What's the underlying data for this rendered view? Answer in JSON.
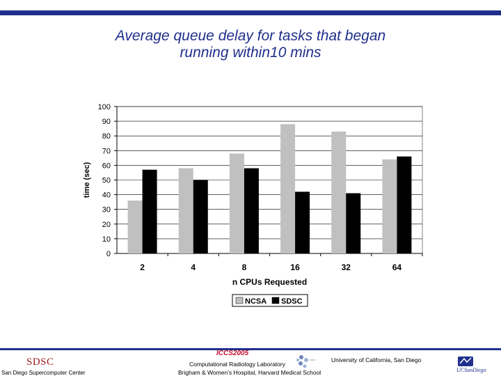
{
  "slide": {
    "title_line1": "Average queue delay for tasks that began",
    "title_line2": "running within10 mins"
  },
  "chart_data": {
    "type": "bar",
    "title": "",
    "xlabel": "n CPUs Requested",
    "ylabel": "time (sec)",
    "ylim": [
      0,
      100
    ],
    "yticks": [
      0,
      10,
      20,
      30,
      40,
      50,
      60,
      70,
      80,
      90,
      100
    ],
    "categories": [
      "2",
      "4",
      "8",
      "16",
      "32",
      "64"
    ],
    "series": [
      {
        "name": "NCSA",
        "values": [
          36,
          58,
          68,
          88,
          83,
          64
        ],
        "color": "#c0c0c0"
      },
      {
        "name": "SDSC",
        "values": [
          57,
          50,
          58,
          42,
          41,
          66
        ],
        "color": "#000000"
      }
    ],
    "grid": true,
    "legend_position": "bottom"
  },
  "footer": {
    "sdsc_logo_text": "SDSC",
    "sdsc_center": "San Diego Supercomputer Center",
    "conference": "ICCS2005",
    "lab": "Computational Radiology Laboratory",
    "hospital": "Brigham & Women’s Hospital, Harvard Medical School",
    "university": "University of California, San Diego",
    "ucsd_logo_text": "UCSanDiego",
    "accent_color": "#1f2f8c"
  }
}
